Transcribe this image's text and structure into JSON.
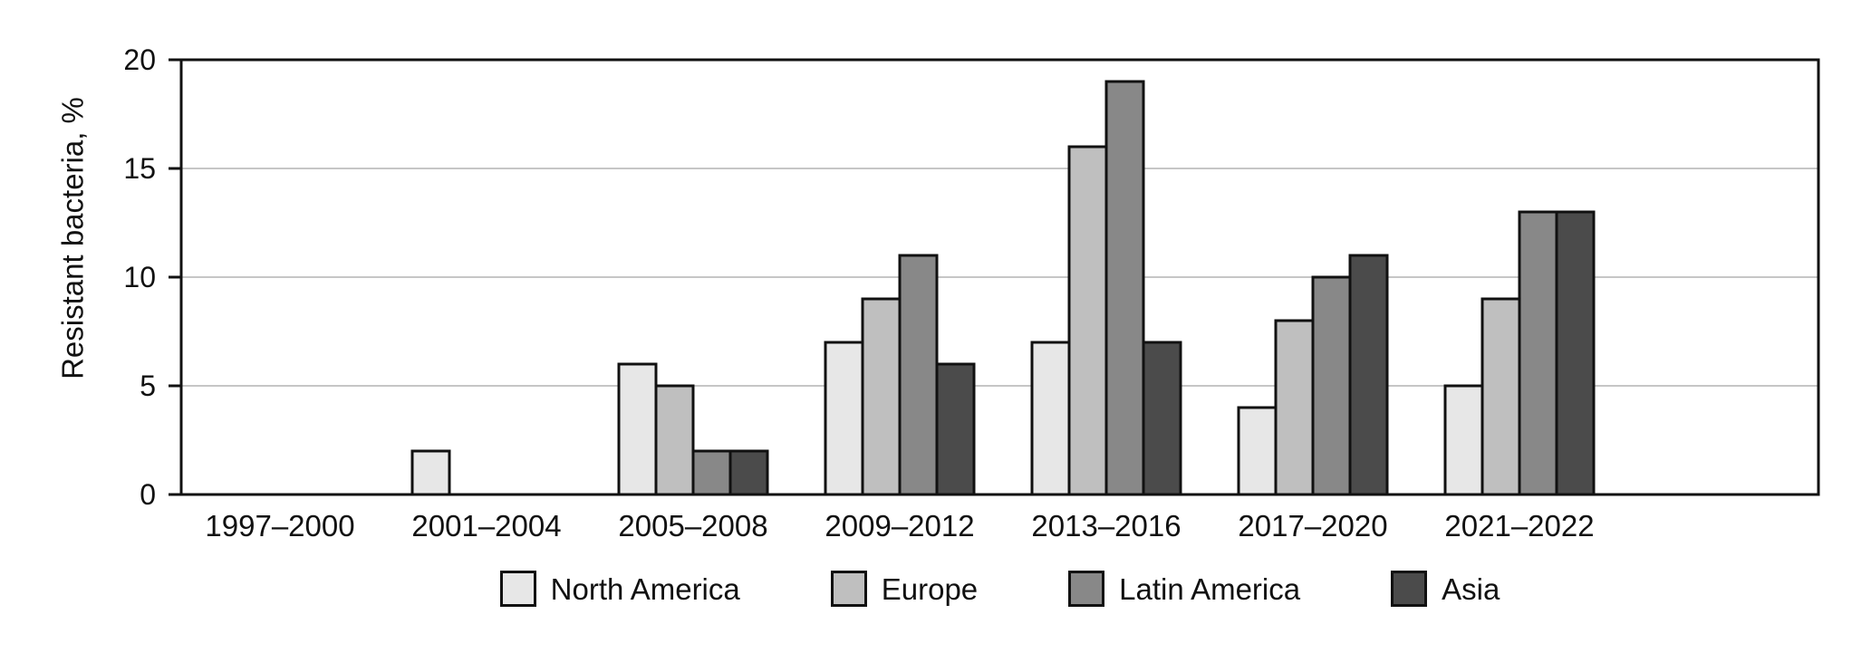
{
  "chart_data": {
    "type": "bar",
    "title": "",
    "xlabel": "",
    "ylabel": "Resistant bacteria, %",
    "categories": [
      "1997–2000",
      "2001–2004",
      "2005–2008",
      "2009–2012",
      "2013–2016",
      "2017–2020",
      "2021–2022"
    ],
    "series": [
      {
        "name": "North America",
        "color": "#e7e7e7",
        "values": [
          0,
          2,
          6,
          7,
          7,
          4,
          5
        ]
      },
      {
        "name": "Europe",
        "color": "#bfbfbf",
        "values": [
          0,
          0,
          5,
          9,
          16,
          8,
          9
        ]
      },
      {
        "name": "Latin America",
        "color": "#888888",
        "values": [
          0,
          0,
          2,
          11,
          19,
          10,
          13
        ]
      },
      {
        "name": "Asia",
        "color": "#4b4b4b",
        "values": [
          0,
          0,
          2,
          6,
          7,
          11,
          13
        ]
      }
    ],
    "ylim": [
      0,
      20
    ],
    "yticks": [
      0,
      5,
      10,
      15,
      20
    ],
    "grid": true,
    "hide_zero_bars": true,
    "legend_position": "bottom",
    "colors": {
      "frame": "#111111",
      "bar_border": "#111111",
      "gridline": "#c6c6c6",
      "text": "#111111"
    }
  }
}
